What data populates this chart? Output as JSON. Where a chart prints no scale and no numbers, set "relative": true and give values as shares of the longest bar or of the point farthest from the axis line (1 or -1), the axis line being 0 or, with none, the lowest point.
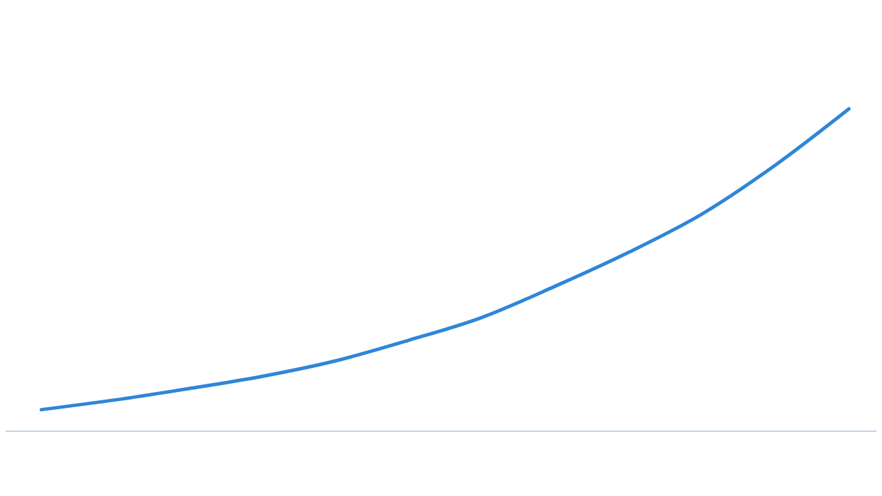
{
  "chart_data": {
    "type": "line",
    "relative": true,
    "categories": [
      null,
      null,
      null,
      null,
      null,
      null,
      null,
      null,
      null,
      null,
      null,
      null
    ],
    "series": [
      {
        "color": "#2f86d8",
        "values": [
          0.067,
          0.097,
          0.132,
          0.17,
          0.218,
          0.282,
          0.353,
          0.45,
          0.555,
          0.674,
          0.826,
          1
        ]
      }
    ],
    "marker": "none",
    "line_style": "solid"
  }
}
